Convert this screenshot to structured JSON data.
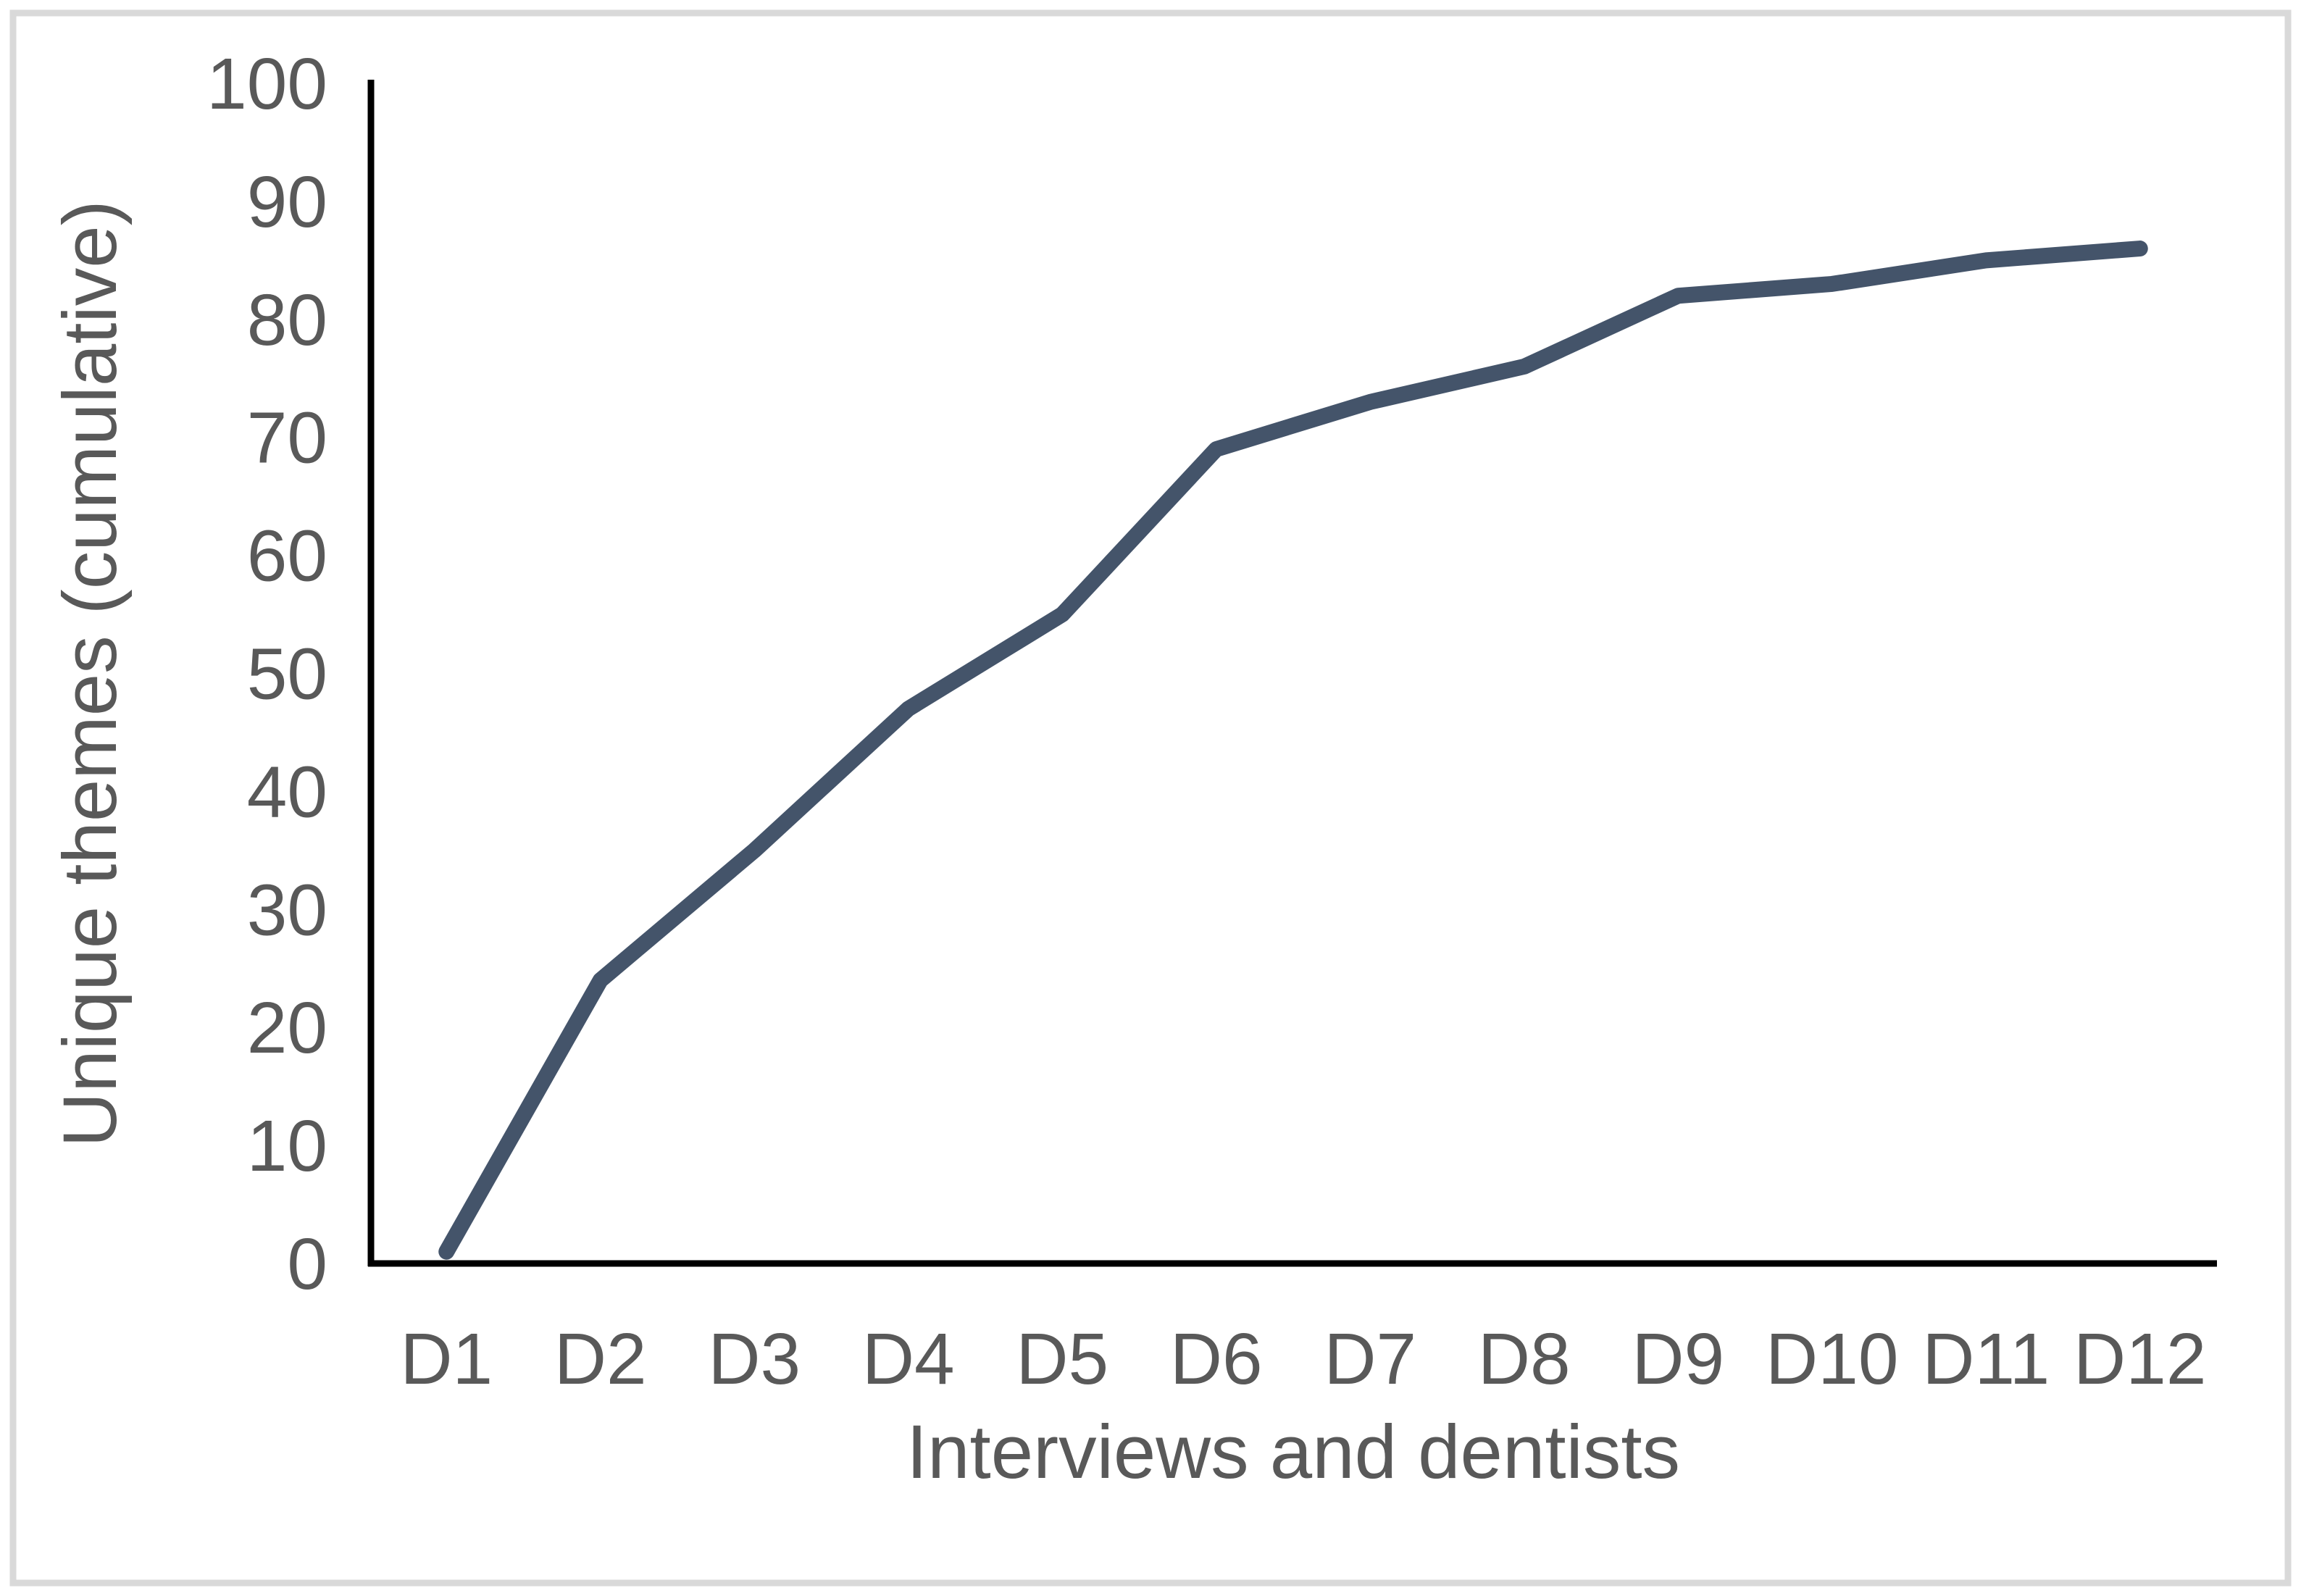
{
  "figure": {
    "background_color": "#FFFFFF",
    "border_color": "#D9D9D9"
  },
  "chart_data": {
    "type": "line",
    "title": "",
    "categories": [
      "D1",
      "D2",
      "D3",
      "D4",
      "D5",
      "D6",
      "D7",
      "D8",
      "D9",
      "D10",
      "D11",
      "D12"
    ],
    "series": [
      {
        "name": "Unique themes (cumulative)",
        "values": [
          1,
          24,
          35,
          47,
          55,
          69,
          73,
          76,
          82,
          83,
          85,
          86
        ],
        "color": "#44546A"
      }
    ],
    "xlabel": "Interviews and dentists",
    "ylabel": "Unique themes (cumulative)",
    "ylim": [
      0,
      100
    ],
    "yticks": [
      0,
      10,
      20,
      30,
      40,
      50,
      60,
      70,
      80,
      90,
      100
    ],
    "grid": false,
    "legend_position": "none",
    "axis_line_color": "#000000",
    "tick_label_color": "#595959"
  }
}
